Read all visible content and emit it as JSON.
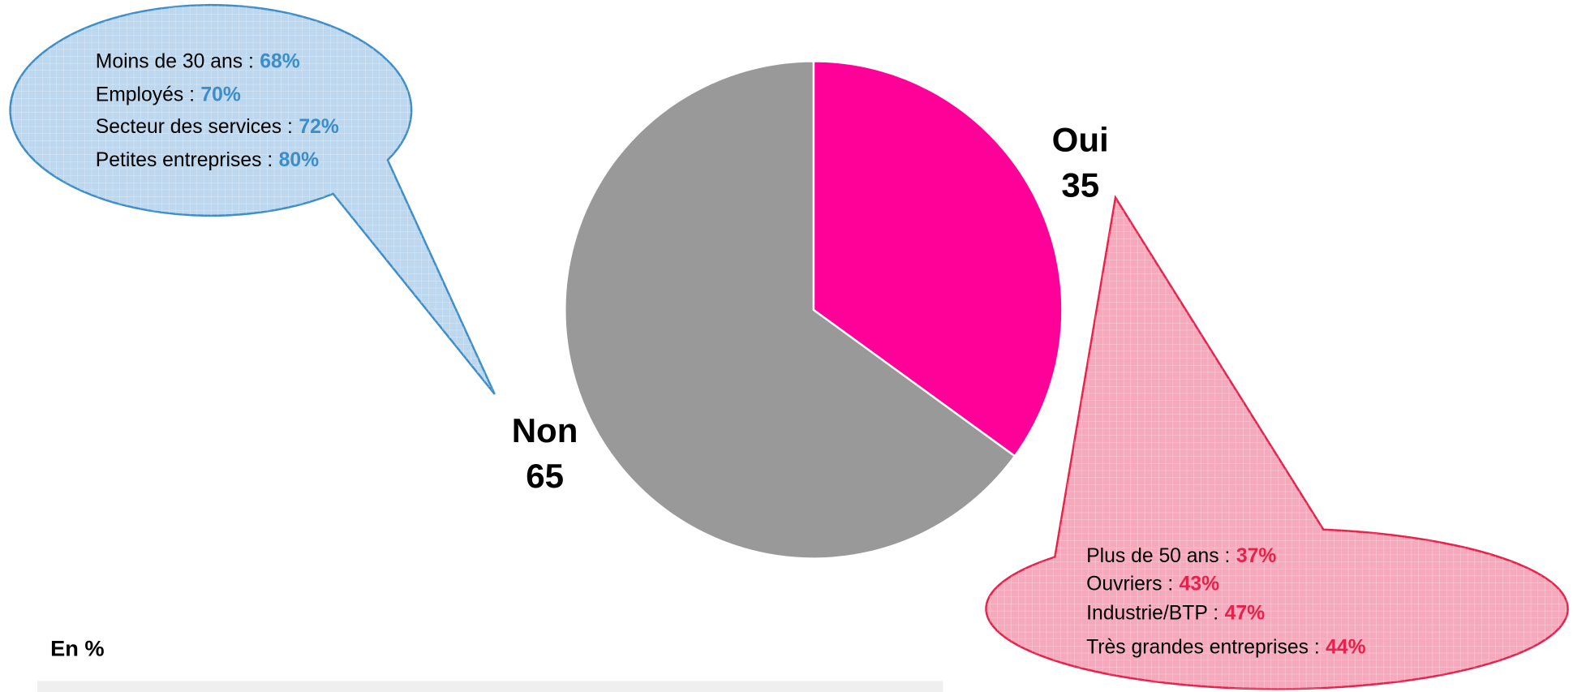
{
  "chart_data": {
    "type": "pie",
    "categories": [
      "Oui",
      "Non"
    ],
    "values": [
      35,
      65
    ],
    "colors": [
      "#ff0099",
      "#999999"
    ],
    "callouts": [
      {
        "slice": 1,
        "color": "#3c8dc8",
        "fill": "#bdd7ee",
        "items": [
          {
            "text": "Moins de 30 ans :",
            "figure": "68%"
          },
          {
            "text": "Employés :",
            "figure": "70%"
          },
          {
            "text": "Secteur des services :",
            "figure": "72%"
          },
          {
            "text": "Petites entreprises :",
            "figure": "80%"
          }
        ]
      },
      {
        "slice": 0,
        "color": "#e8204a",
        "fill": "#f5a9bc",
        "items": [
          {
            "text": "Plus de 50 ans :",
            "figure": "37%"
          },
          {
            "text": "Ouvriers :",
            "figure": "43%"
          },
          {
            "text": "Industrie/BTP :",
            "figure": "47%"
          },
          {
            "text": "Très grandes entreprises :",
            "figure": "44%"
          }
        ]
      }
    ],
    "footnote": "En %"
  }
}
